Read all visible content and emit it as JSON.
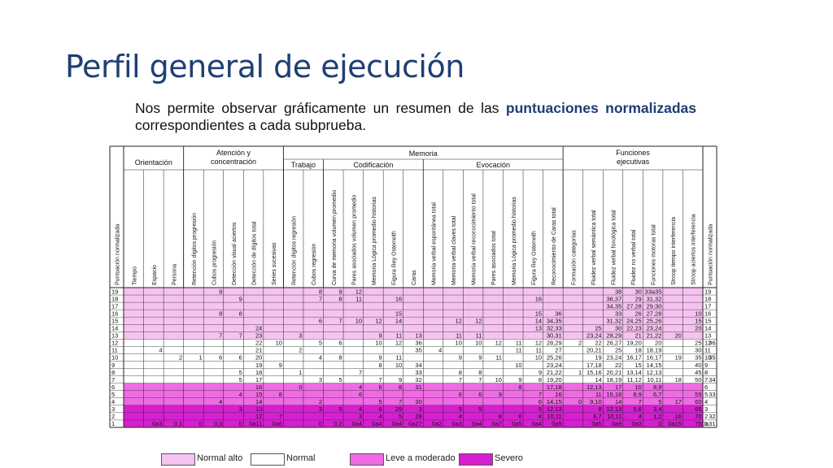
{
  "title": "Perfil general de ejecución",
  "description": {
    "pre": "Nos permite observar gráficamente un resumen de las ",
    "bold": "puntuaciones normalizadas",
    "post": " correspondientes a cada subprueba."
  },
  "colors": {
    "normal_alto": "#f6c3f0",
    "normal": "#ffffff",
    "leve_a_moderado": "#ef6be4",
    "severo": "#d61fd1"
  },
  "legend": [
    "Normal alto",
    "Normal",
    "Leve a moderado",
    "Severo"
  ],
  "table": {
    "groups": [
      {
        "label": "Orientación",
        "start": 1,
        "end": 3
      },
      {
        "label": "Atención y\nconcentración",
        "start": 4,
        "end": 8
      },
      {
        "label": "Memoria",
        "start": 9,
        "end": 22
      },
      {
        "label": "Funciones\nejecutivas",
        "start": 23,
        "end": 29
      }
    ],
    "subgroups": [
      {
        "label": "Trabajo",
        "start": 9,
        "end": 10
      },
      {
        "label": "Codificación",
        "start": 11,
        "end": 15
      },
      {
        "label": "Evocación",
        "start": 16,
        "end": 22
      }
    ],
    "columns": [
      "Puntuación normalizada",
      "Tiempo",
      "Espacio",
      "Persona",
      "Retención dígitos progresión",
      "Cubos progresión",
      "Detección visual aciertos",
      "Detección de dígitos total",
      "Series sucesivas",
      "Retención dígitos regresión",
      "Cubos regresión",
      "Curva de memoria volumen promedio",
      "Pares asociados volumen promedio",
      "Memoria Lógica promedio historias",
      "Figura Rey Osterreith",
      "Caras",
      "Memoria verbal espontánea total",
      "Memoria verbal claves total",
      "Memoria verbal reconocimiento total",
      "Pares asociados total",
      "Memoria Lógica promedio historias",
      "Figura Rey Osterreith",
      "Reconocimiento de Caras total",
      "Formación categorías",
      "Fluidez verbal semántica total",
      "Fluidez verbal fonológica total",
      "Fluidez no verbal total",
      "Funciones motoras total",
      "Stroop tiempo interferencia",
      "Stroop aciertos interferencia",
      "Puntuación normalizada"
    ],
    "rows": [
      {
        "pn": "19",
        "cells": {
          "4": "9",
          "9": "8",
          "10": "9",
          "11": "12",
          "24": "38",
          "25": "30",
          "26": "33a35"
        }
      },
      {
        "pn": "18",
        "cells": {
          "5": "9",
          "9": "7",
          "10": "8",
          "11": "11",
          "13": "16",
          "20": "16",
          "24": "36,37",
          "25": "29",
          "26": "31,32"
        }
      },
      {
        "pn": "17",
        "cells": {
          "24": "34,35",
          "25": "27,28",
          "26": "29,30"
        }
      },
      {
        "pn": "16",
        "cells": {
          "4": "8",
          "5": "8",
          "13": "15",
          "20": "15",
          "21": "36",
          "24": "33",
          "25": "26",
          "26": "27,28",
          "28": "10"
        }
      },
      {
        "pn": "15",
        "cells": {
          "9": "6",
          "10": "7",
          "11": "10",
          "12": "12",
          "13": "14",
          "16": "12",
          "17": "12",
          "20": "14",
          "21": "34,35",
          "24": "31,32",
          "25": "24,25",
          "26": "25,26",
          "28": "15"
        }
      },
      {
        "pn": "14",
        "cells": {
          "6": "24",
          "20": "13",
          "21": "32,33",
          "23": "25",
          "24": "30",
          "25": "22,23",
          "26": "23,24",
          "28": "20"
        }
      },
      {
        "pn": "13",
        "cells": {
          "4": "7",
          "5": "7",
          "6": "23",
          "8": "3",
          "12": "9",
          "13": "11",
          "14": "13",
          "16": "11",
          "17": "11",
          "21": "30,31",
          "23": "23,24",
          "24": "28,29",
          "25": "21",
          "26": "21,22",
          "27": "20"
        }
      },
      {
        "pn": "12",
        "cells": {
          "6": "22",
          "7": "10",
          "9": "5",
          "10": "6",
          "12": "10",
          "13": "12",
          "14": "36",
          "16": "10",
          "17": "10",
          "18": "12",
          "19": "11",
          "20": "12",
          "21": "28,29",
          "22": "2",
          "23": "22",
          "24": "26,27",
          "25": "19,20",
          "26": "20",
          "28": "25",
          "29": "36"
        }
      },
      {
        "pn": "11",
        "cells": {
          "1": "4",
          "6": "21",
          "8": "2",
          "14": "35",
          "15": "4",
          "19": "11",
          "20": "11",
          "21": "27",
          "23": "20,21",
          "24": "25",
          "25": "18",
          "26": "18,19",
          "28": "30"
        }
      },
      {
        "pn": "10",
        "cells": {
          "2": "2",
          "3": "1",
          "4": "6",
          "5": "6",
          "6": "20",
          "9": "4",
          "10": "8",
          "12": "9",
          "13": "11",
          "16": "9",
          "17": "9",
          "18": "11",
          "20": "10",
          "21": "25,26",
          "23": "19",
          "24": "23,24",
          "25": "16,17",
          "26": "16,17",
          "27": "19",
          "28": "35",
          "29": "35"
        }
      },
      {
        "pn": "9",
        "cells": {
          "6": "19",
          "7": "9",
          "12": "8",
          "13": "10",
          "14": "34",
          "19": "10",
          "21": "23,24",
          "23": "17,18",
          "24": "22",
          "25": "15",
          "26": "14,15",
          "28": "40"
        }
      },
      {
        "pn": "8",
        "cells": {
          "5": "5",
          "6": "18",
          "8": "1",
          "11": "7",
          "14": "33",
          "16": "8",
          "17": "8",
          "20": "9",
          "21": "21,22",
          "22": "1",
          "23": "15,16",
          "24": "20,21",
          "25": "13,14",
          "26": "12,13",
          "28": "45"
        }
      },
      {
        "pn": "7",
        "cells": {
          "5": "5",
          "6": "17",
          "9": "3",
          "10": "5",
          "12": "7",
          "13": "9",
          "14": "32",
          "16": "7",
          "17": "7",
          "18": "10",
          "19": "9",
          "20": "8",
          "21": "19,20",
          "23": "14",
          "24": "18,19",
          "25": "11,12",
          "26": "10,11",
          "27": "18",
          "28": "50",
          "29": "34"
        }
      },
      {
        "pn": "6",
        "cells": {
          "6": "16",
          "8": "0",
          "11": "4",
          "12": "6",
          "13": "8",
          "14": "31",
          "19": "8",
          "21": "17,18",
          "23": "12,13",
          "24": "17",
          "25": "10",
          "26": "8,9"
        }
      },
      {
        "pn": "5",
        "cells": {
          "5": "4",
          "6": "15",
          "7": "8",
          "11": "6",
          "16": "6",
          "17": "6",
          "18": "9",
          "20": "7",
          "21": "16",
          "23": "11",
          "24": "15,16",
          "25": "8,9",
          "26": "6,7",
          "28": "55",
          "29": "33"
        }
      },
      {
        "pn": "4",
        "cells": {
          "4": "4",
          "6": "14",
          "9": "2",
          "12": "5",
          "13": "7",
          "14": "30",
          "20": "6",
          "21": "14,15",
          "22": "0",
          "23": "9,10",
          "24": "14",
          "25": "7",
          "26": "5",
          "27": "17",
          "28": "60"
        }
      },
      {
        "pn": "3",
        "cells": {
          "5": "3",
          "6": "13",
          "9": "3",
          "10": "5",
          "11": "4",
          "12": "6",
          "13": "29",
          "14": "3",
          "16": "5",
          "17": "5",
          "20": "5",
          "21": "12,13",
          "23": "8",
          "24": "12,13",
          "25": "5,6",
          "26": "3,4",
          "28": "65"
        }
      },
      {
        "pn": "2",
        "cells": {
          "6": "12",
          "7": "7",
          "11": "3",
          "12": "4",
          "13": "5",
          "14": "28",
          "16": "4",
          "18": "8",
          "19": "6",
          "20": "4",
          "21": "10,11",
          "23": "6,7",
          "24": "10,11",
          "25": "4",
          "26": "1,2",
          "27": "16",
          "28": "70",
          "29": "32"
        }
      },
      {
        "pn": "1",
        "cells": {
          "1": "0a3",
          "2": "0,1",
          "3": "0",
          "4": "0,3",
          "5": "0",
          "6": "0a11",
          "7": "0a6",
          "9": "0",
          "10": "0,2",
          "11": "0a4",
          "12": "0a4",
          "13": "0a4",
          "14": "0a27",
          "15": "0a2",
          "16": "0a3",
          "17": "0a4",
          "18": "0a7",
          "19": "0a5",
          "20": "0a4",
          "21": "0a9",
          "23": "0a5",
          "24": "0a9",
          "25": "0a3",
          "26": "0",
          "27": "0a15",
          "28": "75",
          "29": "0a31"
        }
      }
    ]
  }
}
